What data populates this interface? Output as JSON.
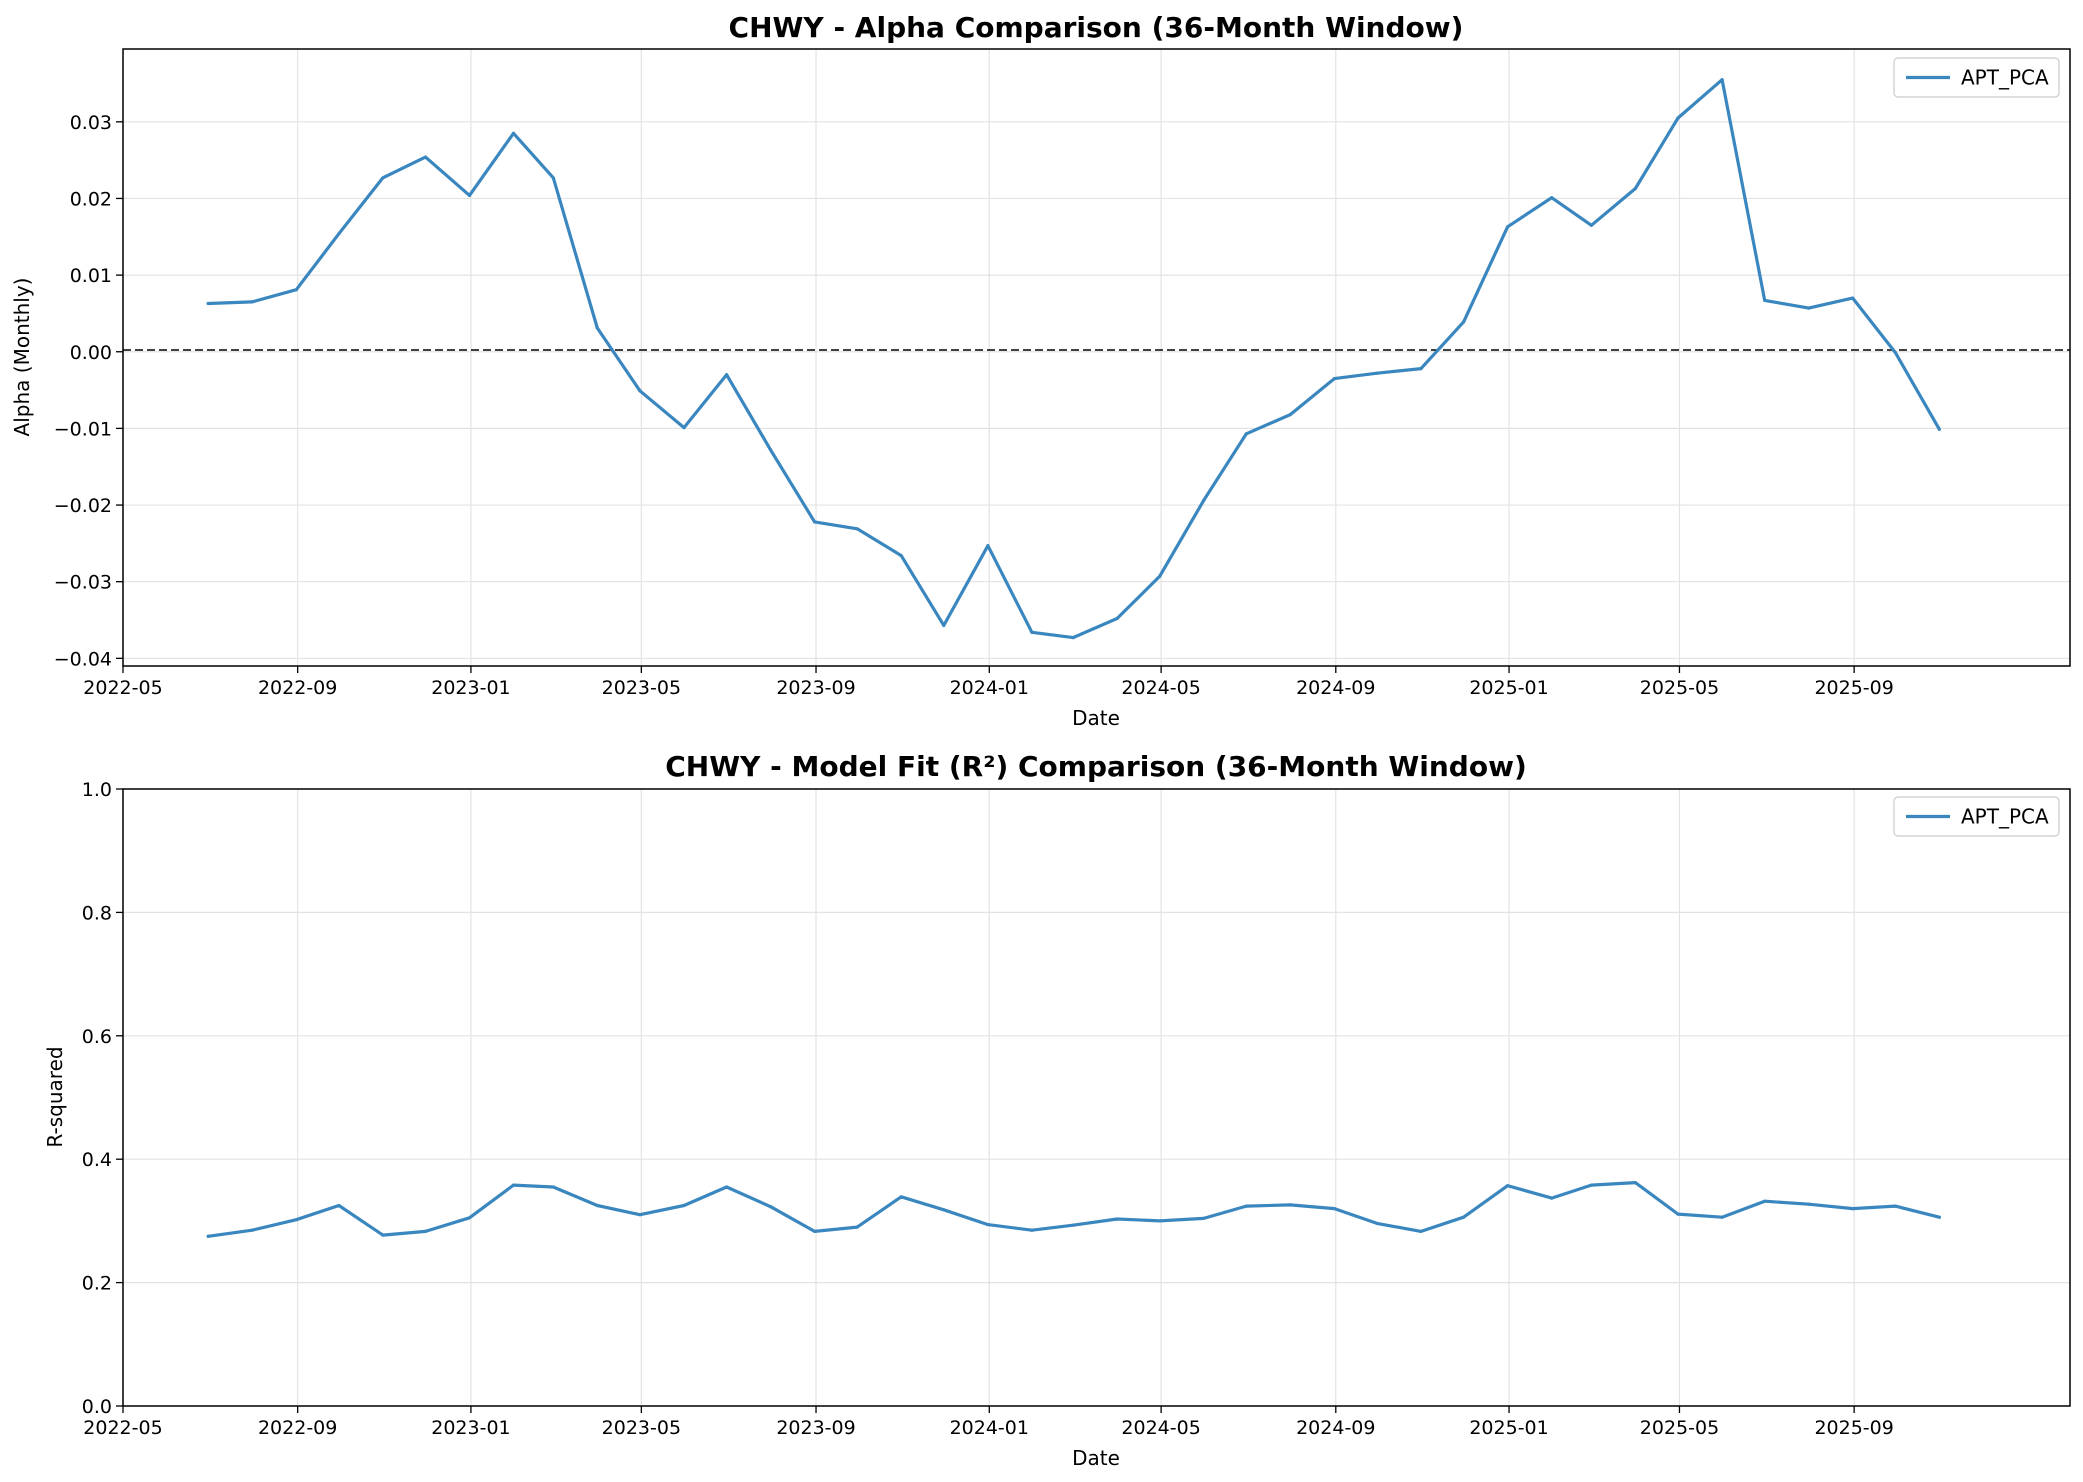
{
  "chart_data": [
    {
      "type": "line",
      "title": "CHWY - Alpha Comparison (36-Month Window)",
      "xlabel": "Date",
      "ylabel": "Alpha (Monthly)",
      "xlim": [
        "2022-05-01",
        "2026-01-31"
      ],
      "ylim": [
        -0.041,
        0.0395
      ],
      "x_ticks": [
        "2022-05",
        "2022-09",
        "2023-01",
        "2023-05",
        "2023-09",
        "2024-01",
        "2024-05",
        "2024-09",
        "2025-01",
        "2025-05",
        "2025-09"
      ],
      "y_ticks": [
        "0.03",
        "0.02",
        "0.01",
        "0.00",
        "−0.01",
        "−0.02",
        "−0.03",
        "−0.04"
      ],
      "y_tick_values": [
        0.03,
        0.02,
        0.01,
        0.0,
        -0.01,
        -0.02,
        -0.03,
        -0.04
      ],
      "grid": true,
      "reference_line": {
        "y": 0.0,
        "style": "dashed",
        "color": "#000000"
      },
      "legend_position": "top-right",
      "x": [
        "2022-06-30",
        "2022-07-31",
        "2022-08-31",
        "2022-09-30",
        "2022-10-31",
        "2022-11-30",
        "2022-12-31",
        "2023-01-31",
        "2023-02-28",
        "2023-03-31",
        "2023-04-30",
        "2023-05-31",
        "2023-06-30",
        "2023-07-31",
        "2023-08-31",
        "2023-09-30",
        "2023-10-31",
        "2023-11-30",
        "2023-12-31",
        "2024-01-31",
        "2024-02-29",
        "2024-03-31",
        "2024-04-30",
        "2024-05-31",
        "2024-06-30",
        "2024-07-31",
        "2024-08-31",
        "2024-09-30",
        "2024-10-31",
        "2024-11-30",
        "2024-12-31",
        "2025-01-31",
        "2025-02-28",
        "2025-03-31",
        "2025-04-30",
        "2025-05-31",
        "2025-06-30",
        "2025-07-31",
        "2025-08-31",
        "2025-09-30",
        "2025-10-31"
      ],
      "series": [
        {
          "name": "APT_PCA",
          "color": "#3a87c0",
          "values": [
            0.0063,
            0.0065,
            0.0081,
            0.0154,
            0.0227,
            0.0254,
            0.0204,
            0.0285,
            0.0227,
            0.0031,
            -0.0051,
            -0.0099,
            -0.003,
            -0.0128,
            -0.0222,
            -0.0231,
            -0.0266,
            -0.0357,
            -0.0253,
            -0.0366,
            -0.0373,
            -0.0348,
            -0.0293,
            -0.0194,
            -0.0107,
            -0.0082,
            -0.0035,
            -0.0028,
            -0.0022,
            0.0039,
            0.0163,
            0.0201,
            0.0165,
            0.0213,
            0.0305,
            0.0355,
            0.0067,
            0.0057,
            0.007,
            -0.0001,
            -0.0101
          ]
        }
      ]
    },
    {
      "type": "line",
      "title": "CHWY - Model Fit (R²) Comparison (36-Month Window)",
      "xlabel": "Date",
      "ylabel": "R-squared",
      "xlim": [
        "2022-05-01",
        "2026-01-31"
      ],
      "ylim": [
        0.0,
        1.0
      ],
      "x_ticks": [
        "2022-05",
        "2022-09",
        "2023-01",
        "2023-05",
        "2023-09",
        "2024-01",
        "2024-05",
        "2024-09",
        "2025-01",
        "2025-05",
        "2025-09"
      ],
      "y_ticks": [
        "1.0",
        "0.8",
        "0.6",
        "0.4",
        "0.2",
        "0.0"
      ],
      "y_tick_values": [
        1.0,
        0.8,
        0.6,
        0.4,
        0.2,
        0.0
      ],
      "grid": true,
      "legend_position": "top-right",
      "x": [
        "2022-06-30",
        "2022-07-31",
        "2022-08-31",
        "2022-09-30",
        "2022-10-31",
        "2022-11-30",
        "2022-12-31",
        "2023-01-31",
        "2023-02-28",
        "2023-03-31",
        "2023-04-30",
        "2023-05-31",
        "2023-06-30",
        "2023-07-31",
        "2023-08-31",
        "2023-09-30",
        "2023-10-31",
        "2023-11-30",
        "2023-12-31",
        "2024-01-31",
        "2024-02-29",
        "2024-03-31",
        "2024-04-30",
        "2024-05-31",
        "2024-06-30",
        "2024-07-31",
        "2024-08-31",
        "2024-09-30",
        "2024-10-31",
        "2024-11-30",
        "2024-12-31",
        "2025-01-31",
        "2025-02-28",
        "2025-03-31",
        "2025-04-30",
        "2025-05-31",
        "2025-06-30",
        "2025-07-31",
        "2025-08-31",
        "2025-09-30",
        "2025-10-31"
      ],
      "series": [
        {
          "name": "APT_PCA",
          "color": "#3a87c0",
          "values": [
            0.275,
            0.285,
            0.302,
            0.325,
            0.277,
            0.283,
            0.305,
            0.358,
            0.355,
            0.325,
            0.31,
            0.325,
            0.355,
            0.323,
            0.283,
            0.29,
            0.339,
            0.318,
            0.294,
            0.285,
            0.293,
            0.303,
            0.3,
            0.304,
            0.324,
            0.326,
            0.32,
            0.296,
            0.283,
            0.306,
            0.357,
            0.337,
            0.358,
            0.362,
            0.311,
            0.306,
            0.332,
            0.327,
            0.32,
            0.324,
            0.306
          ]
        }
      ]
    }
  ]
}
